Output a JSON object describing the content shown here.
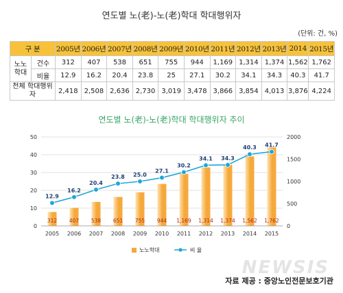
{
  "title": "연도별 노(老)-노(老)학대 학대행위자",
  "unit": "(단위: 건, %)",
  "table": {
    "header_label": "구 분",
    "years": [
      "2005년",
      "2006년",
      "2007년",
      "2008년",
      "2009년",
      "2010년",
      "2011년",
      "2012년",
      "2013년",
      "2014",
      "2015년"
    ],
    "group_label": "노노 학대",
    "rows": [
      {
        "label": "건수",
        "values": [
          "312",
          "407",
          "538",
          "651",
          "755",
          "944",
          "1,169",
          "1,314",
          "1,374",
          "1,562",
          "1,762"
        ]
      },
      {
        "label": "비율",
        "values": [
          "12.9",
          "16.2",
          "20.4",
          "23.8",
          "25",
          "27.1",
          "30.2",
          "34.1",
          "34.3",
          "40.3",
          "41.7"
        ]
      }
    ],
    "total_label": "전체 학대행위자",
    "totals": [
      "2,418",
      "2,508",
      "2,636",
      "2,730",
      "3,019",
      "3,478",
      "3,866",
      "3,854",
      "4,013",
      "3,876",
      "4,224"
    ]
  },
  "chart_title": "연도별 노(老)-노(老)학대 학대행위자 추이",
  "chart_data": {
    "type": "bar",
    "categories": [
      "2005",
      "2006",
      "2007",
      "2008",
      "2009",
      "2010",
      "2011",
      "2012",
      "2013",
      "2014",
      "2015"
    ],
    "series": [
      {
        "name": "노노학대",
        "type": "bar",
        "axis": "right",
        "values": [
          312,
          407,
          538,
          651,
          755,
          944,
          1169,
          1314,
          1374,
          1562,
          1762
        ],
        "labels": [
          "312",
          "407",
          "538",
          "651",
          "755",
          "944",
          "1,169",
          "1,314",
          "1,374",
          "1,562",
          "1,762"
        ]
      },
      {
        "name": "비 율",
        "type": "line",
        "axis": "left",
        "values": [
          12.9,
          16.2,
          20.4,
          23.8,
          25.0,
          27.1,
          30.2,
          34.1,
          34.3,
          40.3,
          41.7
        ],
        "labels": [
          "12.9",
          "16.2",
          "20.4",
          "23.8",
          "25.0",
          "27.1",
          "30.2",
          "34.1",
          "34.3",
          "40.3",
          "41.7"
        ]
      }
    ],
    "ylim_left": [
      0,
      50
    ],
    "yticks_left": [
      0,
      10,
      20,
      30,
      40,
      50
    ],
    "ylim_right": [
      0,
      2000
    ],
    "yticks_right": [
      0,
      500,
      1000,
      1500,
      2000
    ],
    "grid": true,
    "legend": "bottom",
    "colors": {
      "bar": "#f6a93b",
      "bar_light": "#fde3b3",
      "line": "#1ea6d9",
      "bar_label": "#b5261c",
      "line_label": "#1f3f73"
    }
  },
  "credit": "자료 제공 : 중앙노인전문보호기관",
  "watermark": "NEWSIS"
}
